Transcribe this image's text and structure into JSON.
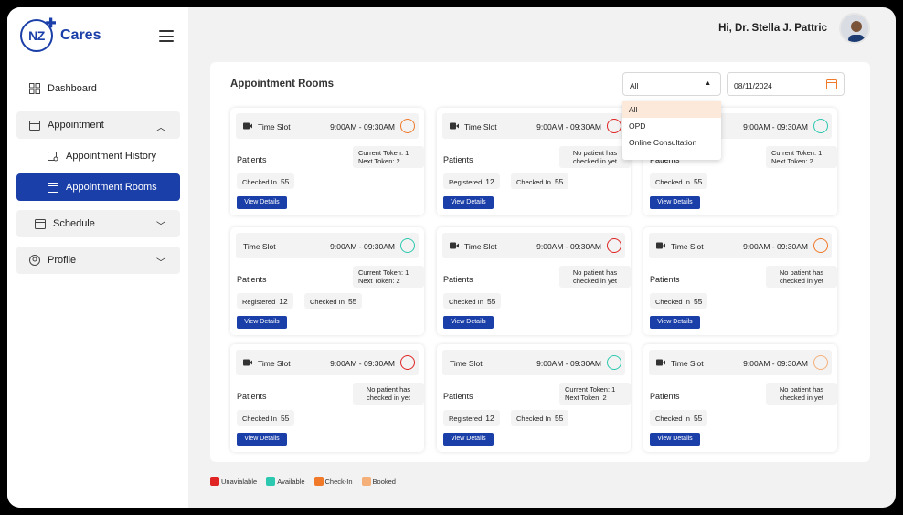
{
  "brand": {
    "logo_mark": "NZ",
    "name": "Cares"
  },
  "sidebar": {
    "items": [
      {
        "label": "Dashboard"
      },
      {
        "label": "Appointment"
      },
      {
        "label": "Appointment History"
      },
      {
        "label": "Appointment Rooms"
      },
      {
        "label": "Schedule"
      },
      {
        "label": "Profile"
      }
    ]
  },
  "header": {
    "greeting": "Hi, Dr. Stella J. Pattric"
  },
  "panel": {
    "title": "Appointment Rooms",
    "filter_value": "All",
    "date_value": "08/11/2024",
    "dropdown_options": [
      "All",
      "OPD",
      "Online Consultation"
    ]
  },
  "card_labels": {
    "time_slot": "Time Slot",
    "patients": "Patients",
    "view_details": "View Details",
    "registered": "Registered",
    "checked_in": "Checked In",
    "no_patient_1": "No patient has",
    "no_patient_2": "checked in yet",
    "current_token": "Current Token: 1",
    "next_token": "Next Token: 2"
  },
  "cards": [
    {
      "time": "9:00AM - 09:30AM",
      "status": "checkin",
      "token": "current",
      "registered": null,
      "checked_in": "55"
    },
    {
      "time": "9:00AM - 09:30AM",
      "status": "unavailable",
      "token": "none",
      "registered": "12",
      "checked_in": "55"
    },
    {
      "time": "9:00AM - 09:30AM",
      "status": "available",
      "token": "current",
      "registered": null,
      "checked_in": "55"
    },
    {
      "time": "9:00AM - 09:30AM",
      "status": "available",
      "token": "current",
      "registered": "12",
      "checked_in": "55"
    },
    {
      "time": "9:00AM - 09:30AM",
      "status": "unavailable",
      "token": "none",
      "registered": null,
      "checked_in": "55"
    },
    {
      "time": "9:00AM - 09:30AM",
      "status": "checkin",
      "token": "none",
      "registered": null,
      "checked_in": "55"
    },
    {
      "time": "9:00AM - 09:30AM",
      "status": "unavailable",
      "token": "none",
      "registered": null,
      "checked_in": "55"
    },
    {
      "time": "9:00AM - 09:30AM",
      "status": "available",
      "token": "current",
      "registered": "12",
      "checked_in": "55"
    },
    {
      "time": "9:00AM - 09:30AM",
      "status": "booked",
      "token": "none",
      "registered": null,
      "checked_in": "55"
    }
  ],
  "legend": [
    {
      "label": "Unavialable",
      "color": "#e02424"
    },
    {
      "label": "Available",
      "color": "#2cc9b0"
    },
    {
      "label": "Check-In",
      "color": "#f07a2a"
    },
    {
      "label": "Booked",
      "color": "#f5b07a"
    }
  ],
  "colors": {
    "primary": "#1a3fa8",
    "accent": "#f07a2a"
  }
}
